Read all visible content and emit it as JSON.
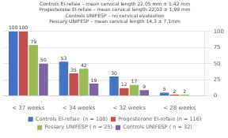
{
  "chart_data": {
    "type": "bar",
    "categories": [
      "< 37 weeks",
      "< 34 weeks",
      "< 32 weeks",
      "< 28 weeks"
    ],
    "series": [
      {
        "name": "Controls El-refaie  (n = 108)",
        "color": "#4472C4",
        "values": [
          100,
          53,
          30,
          5
        ]
      },
      {
        "name": "Progesterone El-refaie (n = 116)",
        "color": "#C0504D",
        "values": [
          100,
          35,
          12,
          2
        ]
      },
      {
        "name": "Pessary UNIFESP ( n = 25)",
        "color": "#9BBB59",
        "values": [
          79,
          42,
          17,
          2
        ]
      },
      {
        "name": "Controls UNIFESP ( n = 32)",
        "color": "#8064A2",
        "values": [
          50,
          19,
          9,
          0
        ],
        "value_labels": [
          "50",
          "19",
          "9",
          null
        ]
      }
    ],
    "annotations": [
      "Controls El-refaie – mean cervical length 22,05 mm ± 1,42 mm",
      "Progesterone El-refaie – mean cervical length 22,03 ± 1,99 mm",
      "Controls UNIFESP – no cervical evaluation",
      "Pessary UNIFESP – mean cervical length 14,3 ± 7,1mm"
    ],
    "ylim": [
      0,
      100
    ],
    "yticks": [
      0,
      25,
      50,
      75,
      100
    ],
    "grid": true,
    "legend": "bottom",
    "data_labels": true
  }
}
